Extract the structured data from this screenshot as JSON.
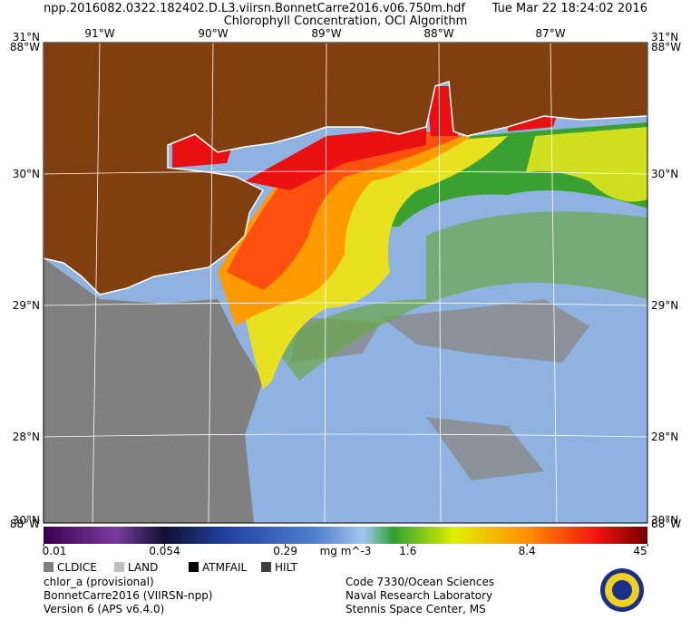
{
  "header": {
    "filename": "npp.2016082.0322.182402.D.L3.viirsn.BonnetCarre2016.v06.750m.hdf",
    "title": "Chlorophyll Concentration, OCI Algorithm",
    "datetime": "Tue Mar 22 18:24:02 2016"
  },
  "map": {
    "lon_labels": [
      "91°W",
      "90°W",
      "89°W",
      "88°W",
      "87°W"
    ],
    "lat_labels": [
      "30°N",
      "29°N",
      "28°N"
    ],
    "corner_labels": {
      "top_left": [
        "31°N",
        "88°W"
      ],
      "top_right": [
        "31°N",
        "88°W"
      ],
      "bottom_left": [
        "30°N",
        "88°W"
      ],
      "bottom_right": [
        "30°N",
        "88°W"
      ]
    }
  },
  "colorbar": {
    "ticks": [
      0.01,
      0.054,
      0.29,
      1.6,
      8.4,
      45
    ],
    "lim": [
      0.01,
      45
    ],
    "log": true,
    "unit": "mg m^-3"
  },
  "legend": [
    {
      "label": "CLDICE",
      "color": "#7f7f7f"
    },
    {
      "label": "LAND",
      "color": "#c0c0c0"
    },
    {
      "label": "ATMFAIL",
      "color": "#000000"
    },
    {
      "label": "HILT",
      "color": "#404040"
    }
  ],
  "footer": {
    "left": [
      "chlor_a (provisional)",
      "BonnetCarre2016 (VIIRSN-npp)",
      "Version 6 (APS v6.4.0)"
    ],
    "right": [
      "Code 7330/Ocean Sciences",
      "Naval Research Laboratory",
      "Stennis Space Center, MS"
    ]
  }
}
